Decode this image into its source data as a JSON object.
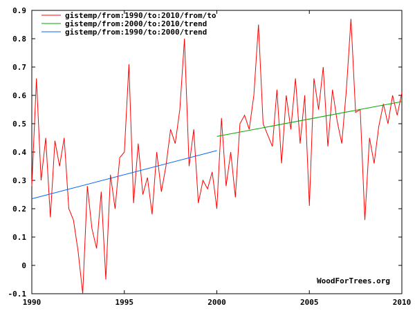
{
  "chart_data": {
    "type": "line",
    "xlim": [
      1990,
      2010
    ],
    "ylim": [
      -0.1,
      0.9
    ],
    "x_ticks": [
      "1990",
      "1995",
      "2000",
      "2005",
      "2010"
    ],
    "y_ticks": [
      "-0.1",
      "0",
      "0.1",
      "0.2",
      "0.3",
      "0.4",
      "0.5",
      "0.6",
      "0.7",
      "0.8",
      "0.9"
    ],
    "grid": false,
    "legend_position": "top-left",
    "watermark": "WoodForTrees.org",
    "series": [
      {
        "name": "gistemp/from:1990/to:2010/from/to",
        "color": "#ff0000",
        "x": [
          1990.0,
          1990.25,
          1990.5,
          1990.75,
          1991.0,
          1991.25,
          1991.5,
          1991.75,
          1992.0,
          1992.25,
          1992.5,
          1992.75,
          1993.0,
          1993.25,
          1993.5,
          1993.75,
          1994.0,
          1994.25,
          1994.5,
          1994.75,
          1995.0,
          1995.25,
          1995.5,
          1995.75,
          1996.0,
          1996.25,
          1996.5,
          1996.75,
          1997.0,
          1997.25,
          1997.5,
          1997.75,
          1998.0,
          1998.25,
          1998.5,
          1998.75,
          1999.0,
          1999.25,
          1999.5,
          1999.75,
          2000.0,
          2000.25,
          2000.5,
          2000.75,
          2001.0,
          2001.25,
          2001.5,
          2001.75,
          2002.0,
          2002.25,
          2002.5,
          2002.75,
          2003.0,
          2003.25,
          2003.5,
          2003.75,
          2004.0,
          2004.25,
          2004.5,
          2004.75,
          2005.0,
          2005.25,
          2005.5,
          2005.75,
          2006.0,
          2006.25,
          2006.5,
          2006.75,
          2007.0,
          2007.25,
          2007.5,
          2007.75,
          2008.0,
          2008.25,
          2008.5,
          2008.75,
          2009.0,
          2009.25,
          2009.5,
          2009.75,
          2010.0
        ],
        "y": [
          0.28,
          0.66,
          0.3,
          0.45,
          0.17,
          0.44,
          0.35,
          0.45,
          0.2,
          0.16,
          0.05,
          -0.1,
          0.28,
          0.13,
          0.06,
          0.26,
          -0.05,
          0.32,
          0.2,
          0.38,
          0.4,
          0.71,
          0.22,
          0.43,
          0.25,
          0.31,
          0.18,
          0.4,
          0.26,
          0.35,
          0.48,
          0.43,
          0.55,
          0.8,
          0.35,
          0.48,
          0.22,
          0.3,
          0.27,
          0.33,
          0.2,
          0.52,
          0.28,
          0.4,
          0.24,
          0.5,
          0.53,
          0.48,
          0.6,
          0.85,
          0.5,
          0.46,
          0.42,
          0.62,
          0.36,
          0.6,
          0.48,
          0.66,
          0.43,
          0.6,
          0.21,
          0.66,
          0.55,
          0.7,
          0.42,
          0.62,
          0.51,
          0.43,
          0.62,
          0.87,
          0.54,
          0.55,
          0.16,
          0.45,
          0.36,
          0.49,
          0.57,
          0.5,
          0.6,
          0.53,
          0.61
        ]
      },
      {
        "name": "gistemp/from:2000/to:2010/trend",
        "color": "#00aa00",
        "x": [
          2000,
          2010
        ],
        "y": [
          0.455,
          0.578
        ]
      },
      {
        "name": "gistemp/from:1990/to:2000/trend",
        "color": "#0066ff",
        "x": [
          1990,
          2000
        ],
        "y": [
          0.235,
          0.405
        ]
      }
    ]
  }
}
